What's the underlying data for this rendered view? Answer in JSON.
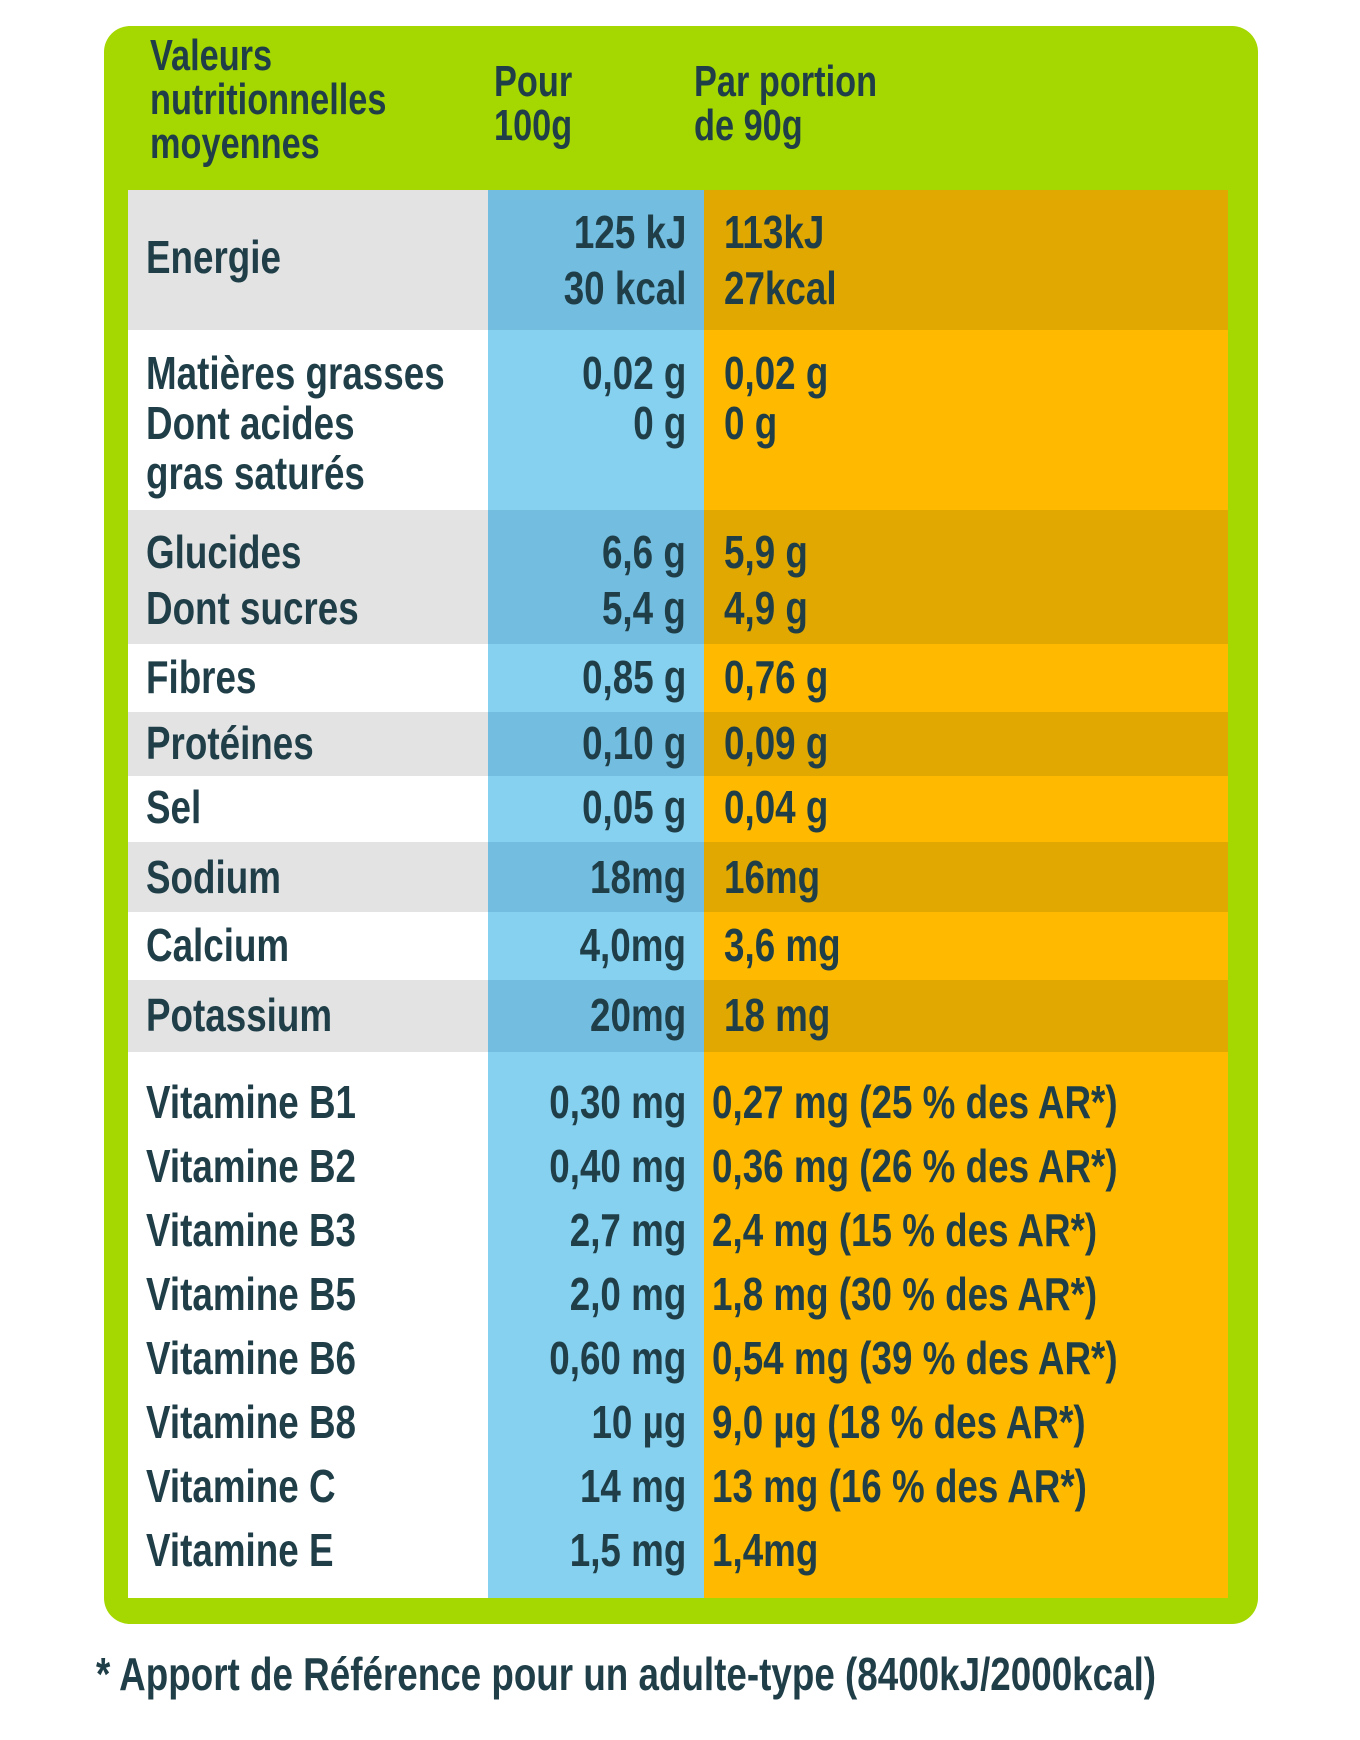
{
  "header": {
    "label_col": [
      "Valeurs",
      "nutritionnelles",
      "moyennes"
    ],
    "per100_col": [
      "Pour",
      "100g"
    ],
    "portion_col": [
      "Par portion",
      "de 90g"
    ]
  },
  "rows": [
    {
      "name": "energy",
      "labels": [
        "Energie"
      ],
      "v100": [
        "125 kJ",
        "30 kcal"
      ],
      "vport": [
        "113kJ",
        "27kcal"
      ]
    },
    {
      "name": "fat",
      "labels": [
        "Matières grasses",
        "Dont acides",
        "gras saturés"
      ],
      "v100": [
        "0,02 g",
        "0 g"
      ],
      "vport": [
        "0,02 g",
        "0 g"
      ]
    },
    {
      "name": "carbs",
      "labels": [
        "Glucides",
        "Dont sucres"
      ],
      "v100": [
        "6,6 g",
        "5,4 g"
      ],
      "vport": [
        "5,9 g",
        "4,9 g"
      ]
    },
    {
      "name": "fiber",
      "labels": [
        "Fibres"
      ],
      "v100": [
        "0,85 g"
      ],
      "vport": [
        "0,76 g"
      ]
    },
    {
      "name": "protein",
      "labels": [
        "Protéines"
      ],
      "v100": [
        "0,10 g"
      ],
      "vport": [
        "0,09 g"
      ]
    },
    {
      "name": "salt",
      "labels": [
        "Sel"
      ],
      "v100": [
        "0,05 g"
      ],
      "vport": [
        "0,04 g"
      ]
    },
    {
      "name": "sodium",
      "labels": [
        "Sodium"
      ],
      "v100": [
        "18mg"
      ],
      "vport": [
        "16mg"
      ]
    },
    {
      "name": "calcium",
      "labels": [
        "Calcium"
      ],
      "v100": [
        "4,0mg"
      ],
      "vport": [
        "3,6 mg"
      ]
    },
    {
      "name": "potassium",
      "labels": [
        "Potassium"
      ],
      "v100": [
        "20mg"
      ],
      "vport": [
        "18 mg"
      ]
    },
    {
      "name": "vitamins",
      "labels": [
        "Vitamine B1",
        "Vitamine B2",
        "Vitamine B3",
        "Vitamine B5",
        "Vitamine B6",
        "Vitamine B8",
        "Vitamine C",
        "Vitamine E"
      ],
      "v100": [
        "0,30 mg",
        "0,40 mg",
        "2,7 mg",
        "2,0 mg",
        "0,60 mg",
        "10 µg",
        "14 mg",
        "1,5 mg"
      ],
      "vport": [
        "0,27 mg (25 % des AR*)",
        "0,36 mg (26 % des AR*)",
        "2,4 mg (15 % des AR*)",
        "1,8 mg (30 % des AR*)",
        "0,54 mg (39 % des AR*)",
        "9,0 µg (18 % des AR*)",
        "13 mg (16 % des AR*)",
        "1,4mg"
      ]
    }
  ],
  "footer": "* Apport de Référence pour un adulte-type (8400kJ/2000kcal)",
  "colors": {
    "frame": "#a4d800",
    "text": "#1f3e48",
    "per100_light": "#86d0f0",
    "per100_dark": "#72bde0",
    "portion_light": "#ffba00",
    "portion_dark": "#e0a800",
    "label_light": "#ffffff",
    "label_dark": "#e3e3e3"
  }
}
